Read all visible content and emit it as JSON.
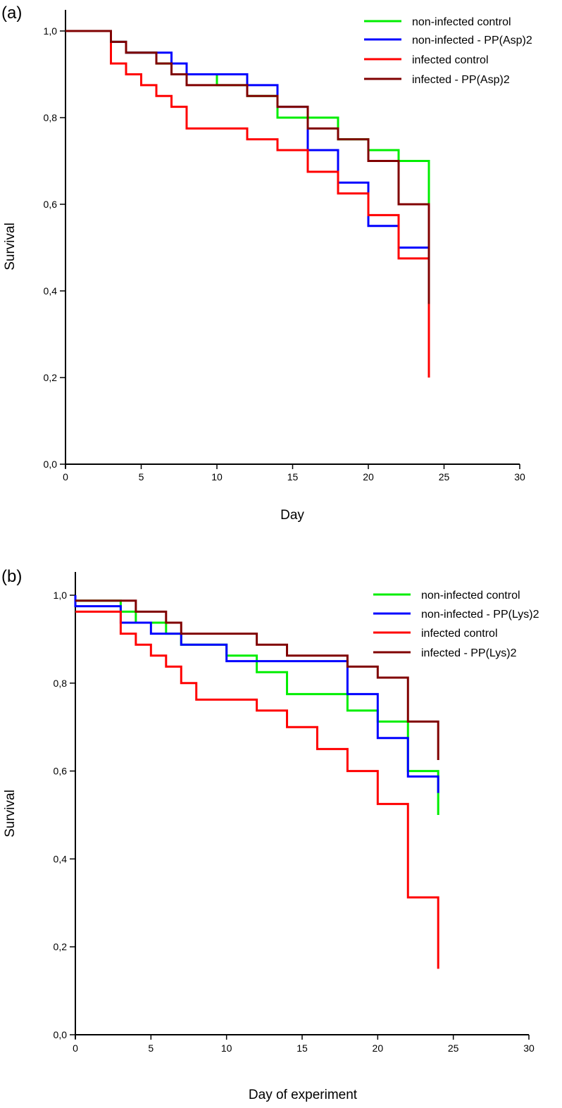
{
  "chart_data": [
    {
      "type": "line",
      "panel_label": "(a)",
      "xlabel": "Day",
      "ylabel": "Survival",
      "xlim": [
        0,
        30
      ],
      "ylim": [
        0,
        1
      ],
      "xticks": [
        "0",
        "5",
        "10",
        "15",
        "20",
        "25",
        "30"
      ],
      "yticks": [
        "0,0",
        "0,2",
        "0,4",
        "0,6",
        "0,8",
        "1,0"
      ],
      "legend_position": "top-right",
      "series": [
        {
          "name": "non-infected control",
          "color": "#00ee00",
          "steps": [
            [
              0,
              1
            ],
            [
              3,
              0.975
            ],
            [
              4,
              0.95
            ],
            [
              6,
              0.925
            ],
            [
              7,
              0.9
            ],
            [
              10,
              0.875
            ],
            [
              12,
              0.85
            ],
            [
              14,
              0.8
            ],
            [
              18,
              0.75
            ],
            [
              20,
              0.725
            ],
            [
              22,
              0.7
            ]
          ],
          "end": [
            24,
            0.6
          ]
        },
        {
          "name": "non-infected - PP(Asp)2",
          "color": "#0000ff",
          "steps": [
            [
              0,
              1
            ],
            [
              3,
              0.975
            ],
            [
              4,
              0.95
            ],
            [
              7,
              0.925
            ],
            [
              8,
              0.9
            ],
            [
              12,
              0.875
            ],
            [
              14,
              0.825
            ],
            [
              16,
              0.725
            ],
            [
              18,
              0.65
            ],
            [
              20,
              0.55
            ],
            [
              22,
              0.5
            ]
          ],
          "end": [
            24,
            0.3
          ]
        },
        {
          "name": "infected control",
          "color": "#ff0000",
          "steps": [
            [
              0,
              1
            ],
            [
              3,
              0.925
            ],
            [
              4,
              0.9
            ],
            [
              5,
              0.875
            ],
            [
              6,
              0.85
            ],
            [
              7,
              0.825
            ],
            [
              8,
              0.775
            ],
            [
              12,
              0.75
            ],
            [
              14,
              0.725
            ],
            [
              16,
              0.675
            ],
            [
              18,
              0.625
            ],
            [
              20,
              0.575
            ],
            [
              22,
              0.475
            ]
          ],
          "end": [
            24,
            0.2
          ]
        },
        {
          "name": "infected - PP(Asp)2",
          "color": "#800000",
          "steps": [
            [
              0,
              1
            ],
            [
              3,
              0.975
            ],
            [
              4,
              0.95
            ],
            [
              6,
              0.925
            ],
            [
              7,
              0.9
            ],
            [
              8,
              0.875
            ],
            [
              12,
              0.85
            ],
            [
              14,
              0.825
            ],
            [
              16,
              0.775
            ],
            [
              18,
              0.75
            ],
            [
              20,
              0.7
            ],
            [
              22,
              0.6
            ]
          ],
          "end": [
            24,
            0.37
          ]
        }
      ]
    },
    {
      "type": "line",
      "panel_label": "(b)",
      "xlabel": "Day of experiment",
      "ylabel": "Survival",
      "xlim": [
        0,
        30
      ],
      "ylim": [
        0,
        1
      ],
      "xticks": [
        "0",
        "5",
        "10",
        "15",
        "20",
        "25",
        "30"
      ],
      "yticks": [
        "0,0",
        "0,2",
        "0,4",
        "0,6",
        "0,8",
        "1,0"
      ],
      "legend_position": "top-right",
      "series": [
        {
          "name": "non-infected control",
          "color": "#00ee00",
          "steps": [
            [
              0,
              0.9875
            ],
            [
              3,
              0.9625
            ],
            [
              4,
              0.9375
            ],
            [
              6,
              0.9125
            ],
            [
              7,
              0.8875
            ],
            [
              10,
              0.8625
            ],
            [
              12,
              0.825
            ],
            [
              14,
              0.775
            ],
            [
              18,
              0.7375
            ],
            [
              20,
              0.7125
            ],
            [
              22,
              0.6
            ]
          ],
          "end": [
            24,
            0.5
          ]
        },
        {
          "name": "non-infected - PP(Lys)2",
          "color": "#0000ff",
          "steps": [
            [
              0,
              1
            ],
            [
              0,
              0.975
            ],
            [
              3,
              0.9375
            ],
            [
              5,
              0.9125
            ],
            [
              7,
              0.8875
            ],
            [
              10,
              0.85
            ],
            [
              18,
              0.775
            ],
            [
              20,
              0.675
            ],
            [
              22,
              0.5875
            ]
          ],
          "end": [
            24,
            0.55
          ]
        },
        {
          "name": "infected control",
          "color": "#ff0000",
          "steps": [
            [
              0,
              0.9625
            ],
            [
              3,
              0.9125
            ],
            [
              4,
              0.8875
            ],
            [
              5,
              0.8625
            ],
            [
              6,
              0.8375
            ],
            [
              7,
              0.8
            ],
            [
              8,
              0.7625
            ],
            [
              12,
              0.7375
            ],
            [
              14,
              0.7
            ],
            [
              16,
              0.65
            ],
            [
              18,
              0.6
            ],
            [
              20,
              0.525
            ],
            [
              22,
              0.3125
            ]
          ],
          "end": [
            24,
            0.15
          ]
        },
        {
          "name": "infected - PP(Lys)2",
          "color": "#800000",
          "steps": [
            [
              0,
              0.9875
            ],
            [
              4,
              0.9625
            ],
            [
              6,
              0.9375
            ],
            [
              7,
              0.9125
            ],
            [
              12,
              0.8875
            ],
            [
              14,
              0.8625
            ],
            [
              18,
              0.8375
            ],
            [
              20,
              0.8125
            ],
            [
              22,
              0.7125
            ]
          ],
          "end": [
            24,
            0.625
          ]
        }
      ]
    }
  ]
}
